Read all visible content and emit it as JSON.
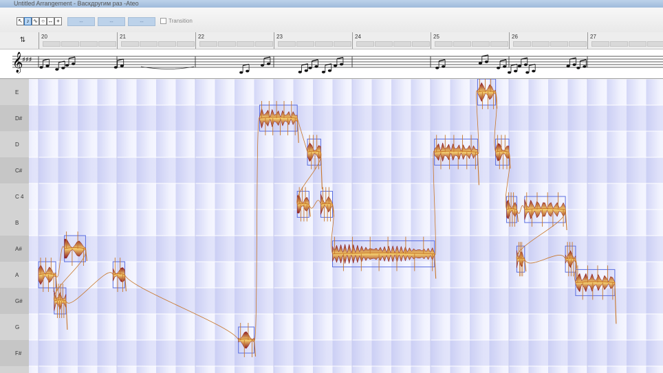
{
  "window": {
    "title": "Untitled Arrangement - Васкдругим раз -Ateo"
  },
  "toolbar": {
    "tools": [
      {
        "name": "pointer-tool",
        "glyph": "↖",
        "active": false
      },
      {
        "name": "main-tool",
        "glyph": "♪",
        "active": true
      },
      {
        "name": "pitch-tool",
        "glyph": "∿",
        "active": false
      },
      {
        "name": "formant-tool",
        "glyph": "○",
        "active": false
      },
      {
        "name": "amplitude-tool",
        "glyph": "↔",
        "active": false
      },
      {
        "name": "time-tool",
        "glyph": "+",
        "active": false
      }
    ],
    "fields": [
      "--",
      "--",
      "--"
    ],
    "transition_label": "Transition"
  },
  "ruler": {
    "corner_glyph": "⇅",
    "bars": [
      "20",
      "21",
      "22",
      "23",
      "24",
      "25",
      "26",
      "27"
    ]
  },
  "pitch_lanes": [
    "E",
    "D#",
    "D",
    "C#",
    "C 4",
    "B",
    "A#",
    "A",
    "G#",
    "G",
    "F#"
  ],
  "colors": {
    "grid_bg": "#f5f6ff",
    "sharp_lane": "#e2e4fa",
    "column_shade": "#b8bdf0",
    "blob_outline": "#5a6ee0",
    "blob_dark": "#8a1a20",
    "blob_light": "#f5d070",
    "pitch_curve": "#c8772a"
  },
  "notes": [
    {
      "lane": 7,
      "start": 20.0,
      "end": 20.22,
      "wave": 3,
      "tail": 40
    },
    {
      "lane": 6,
      "start": 20.33,
      "end": 20.6,
      "wave": 2,
      "tail": 30
    },
    {
      "lane": 8,
      "start": 20.2,
      "end": 20.35,
      "wave": 4,
      "tail": 70
    },
    {
      "lane": 7,
      "start": 20.95,
      "end": 21.1,
      "wave": 2,
      "tail": 40
    },
    {
      "lane": 9.5,
      "start": 22.55,
      "end": 22.75,
      "wave": 2,
      "tail": 40
    },
    {
      "lane": 1,
      "start": 22.82,
      "end": 23.3,
      "wave": 5,
      "tail": 60
    },
    {
      "lane": 2.3,
      "start": 23.43,
      "end": 23.6,
      "wave": 3,
      "tail": 90
    },
    {
      "lane": 4.3,
      "start": 23.3,
      "end": 23.45,
      "wave": 3,
      "tail": 30
    },
    {
      "lane": 4.3,
      "start": 23.6,
      "end": 23.75,
      "wave": 3,
      "tail": 30
    },
    {
      "lane": 6.2,
      "start": 23.75,
      "end": 25.05,
      "wave": 6,
      "tail": 60
    },
    {
      "lane": 2.3,
      "start": 25.05,
      "end": 25.6,
      "wave": 5,
      "tail": 80
    },
    {
      "lane": 0,
      "start": 25.6,
      "end": 25.83,
      "wave": 3,
      "tail": 40
    },
    {
      "lane": 2.3,
      "start": 25.83,
      "end": 26.0,
      "wave": 3,
      "tail": 40
    },
    {
      "lane": 4.5,
      "start": 25.97,
      "end": 26.1,
      "wave": 3,
      "tail": 30
    },
    {
      "lane": 4.5,
      "start": 26.2,
      "end": 26.72,
      "wave": 4,
      "tail": 50
    },
    {
      "lane": 6.4,
      "start": 26.1,
      "end": 26.2,
      "wave": 3,
      "tail": 30
    },
    {
      "lane": 6.4,
      "start": 26.72,
      "end": 26.85,
      "wave": 3,
      "tail": 70
    },
    {
      "lane": 7.3,
      "start": 26.85,
      "end": 27.35,
      "wave": 4,
      "tail": 100
    }
  ]
}
